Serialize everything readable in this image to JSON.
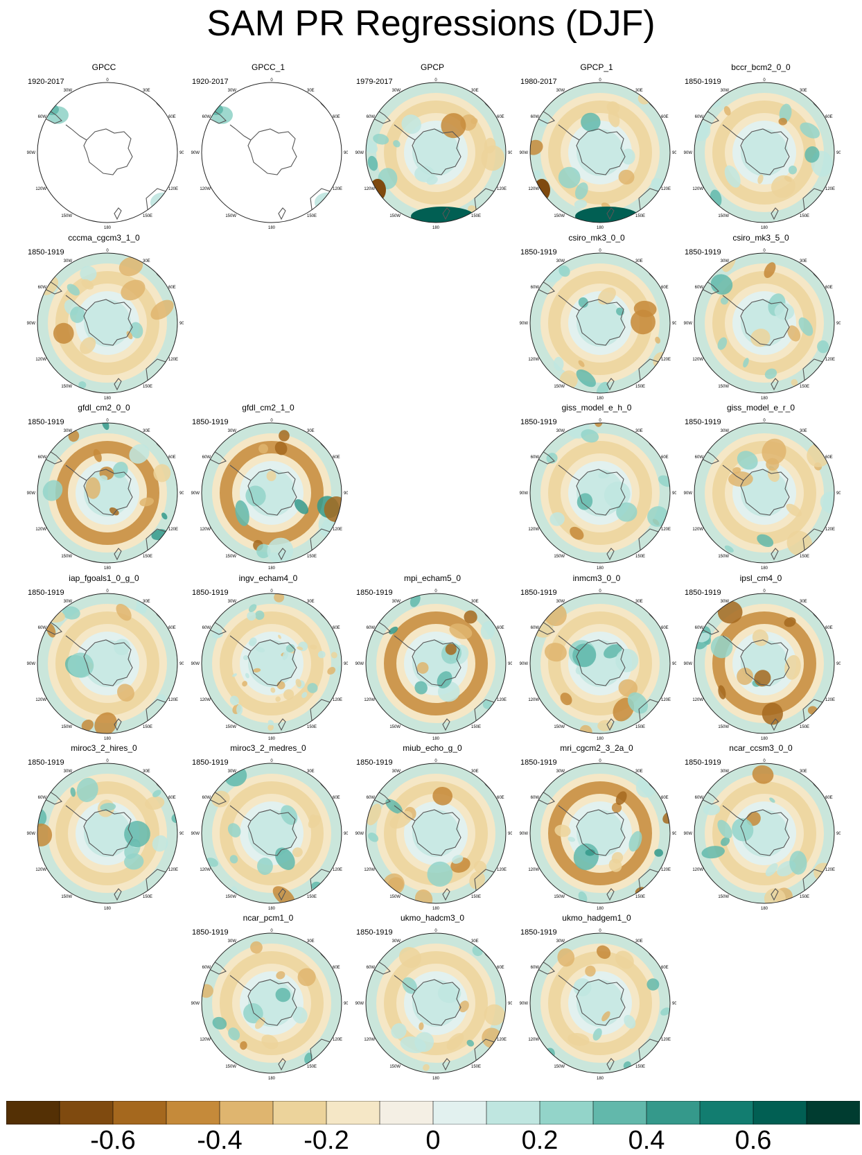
{
  "title": "SAM PR Regressions (DJF)",
  "map_labels": {
    "top": "0",
    "tr": "30E",
    "rt": "60E",
    "right": "90E",
    "rb": "120E",
    "br": "150E",
    "bottom": "180",
    "bl": "150W",
    "lb": "120W",
    "left": "90W",
    "lt": "60W",
    "tl": "30W"
  },
  "panels": [
    {
      "name": "GPCC",
      "period": "1920-2017",
      "style": "sparse"
    },
    {
      "name": "GPCC_1",
      "period": "1920-2017",
      "style": "sparse"
    },
    {
      "name": "GPCP",
      "period": "1979-2017",
      "style": "obs"
    },
    {
      "name": "GPCP_1",
      "period": "1980-2017",
      "style": "obs"
    },
    {
      "name": "bccr_bcm2_0_0",
      "period": "1850-1919",
      "style": "model"
    },
    {
      "name": "cccma_cgcm3_1_0",
      "period": "1850-1919",
      "style": "model"
    },
    {
      "name": "csiro_mk3_0_0",
      "period": "1850-1919",
      "style": "model"
    },
    {
      "name": "csiro_mk3_5_0",
      "period": "1850-1919",
      "style": "model"
    },
    {
      "name": "gfdl_cm2_0_0",
      "period": "1850-1919",
      "style": "strong"
    },
    {
      "name": "gfdl_cm2_1_0",
      "period": "1850-1919",
      "style": "strong"
    },
    {
      "name": "giss_model_e_h_0",
      "period": "1850-1919",
      "style": "model"
    },
    {
      "name": "giss_model_e_r_0",
      "period": "1850-1919",
      "style": "model"
    },
    {
      "name": "iap_fgoals1_0_g_0",
      "period": "1850-1919",
      "style": "model"
    },
    {
      "name": "ingv_echam4_0",
      "period": "1850-1919",
      "style": "weak"
    },
    {
      "name": "mpi_echam5_0",
      "period": "1850-1919",
      "style": "strong"
    },
    {
      "name": "inmcm3_0_0",
      "period": "1850-1919",
      "style": "model"
    },
    {
      "name": "ipsl_cm4_0",
      "period": "1850-1919",
      "style": "strong"
    },
    {
      "name": "miroc3_2_hires_0",
      "period": "1850-1919",
      "style": "model"
    },
    {
      "name": "miroc3_2_medres_0",
      "period": "1850-1919",
      "style": "model"
    },
    {
      "name": "miub_echo_g_0",
      "period": "1850-1919",
      "style": "model"
    },
    {
      "name": "mri_cgcm2_3_2a_0",
      "period": "1850-1919",
      "style": "strong"
    },
    {
      "name": "ncar_ccsm3_0_0",
      "period": "1850-1919",
      "style": "model"
    },
    {
      "name": "ncar_pcm1_0",
      "period": "1850-1919",
      "style": "model"
    },
    {
      "name": "ukmo_hadcm3_0",
      "period": "1850-1919",
      "style": "model"
    },
    {
      "name": "ukmo_hadgem1_0",
      "period": "1850-1919",
      "style": "model"
    }
  ],
  "colorbar": {
    "colors": [
      "#543005",
      "#7f4a0f",
      "#a5681e",
      "#c58a3a",
      "#dfb56f",
      "#ecd39b",
      "#f5e7c6",
      "#f4efe4",
      "#e2f1ef",
      "#bfe6e0",
      "#93d4c9",
      "#62b8ab",
      "#35998b",
      "#127d70",
      "#015f53",
      "#003c30"
    ],
    "tick_labels": [
      "-0.6",
      "-0.4",
      "-0.2",
      "0",
      "0.2",
      "0.4",
      "0.6"
    ]
  }
}
